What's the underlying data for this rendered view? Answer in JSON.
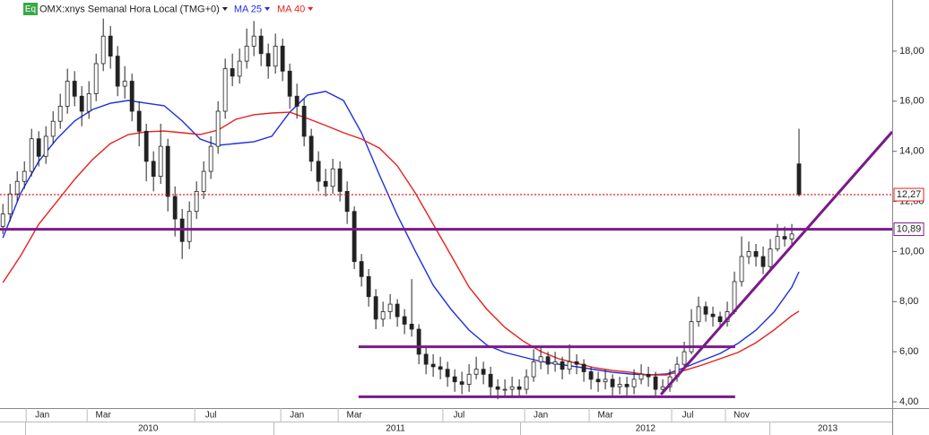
{
  "chart_data": {
    "type": "candlestick",
    "badge": "Eq",
    "title": "OMX:xnys Semanal Hora Local (TMG+0)",
    "candles": {
      "open": [
        11.0,
        11.5,
        12.3,
        12.8,
        13.2,
        14.5,
        13.8,
        14.6,
        15.2,
        15.8,
        16.8,
        16.2,
        15.6,
        16.3,
        17.5,
        18.6,
        17.8,
        16.6,
        16.8,
        15.6,
        14.8,
        13.6,
        13.0,
        14.2,
        12.2,
        11.3,
        10.4,
        11.6,
        12.4,
        13.2,
        14.2,
        15.6,
        17.3,
        17.0,
        17.6,
        18.2,
        18.6,
        17.9,
        17.4,
        18.2,
        17.2,
        16.2,
        15.8,
        14.6,
        13.6,
        12.8,
        12.6,
        13.3,
        12.4,
        11.6,
        9.6,
        9.0,
        8.2,
        7.3,
        7.6,
        7.9,
        7.4,
        7.1,
        6.9,
        5.9,
        5.5,
        5.4,
        5.3,
        5.0,
        4.8,
        4.7,
        5.1,
        5.3,
        5.1,
        4.6,
        4.5,
        4.5,
        4.6,
        4.5,
        5.0,
        5.6,
        5.8,
        5.5,
        5.6,
        5.3,
        5.6,
        5.5,
        5.2,
        4.9,
        4.8,
        4.9,
        4.6,
        4.7,
        4.6,
        4.9,
        5.1,
        5.0,
        4.5,
        4.6,
        5.0,
        5.5,
        6.0,
        7.2,
        7.8,
        7.5,
        7.4,
        7.2,
        7.6,
        8.8,
        9.8,
        10.0,
        9.8,
        9.4,
        10.1,
        10.6,
        10.5,
        13.5
      ],
      "high": [
        11.9,
        12.7,
        13.2,
        13.6,
        14.9,
        14.8,
        15.0,
        15.6,
        16.3,
        17.3,
        17.2,
        16.6,
        16.8,
        17.9,
        19.3,
        19.0,
        18.2,
        17.4,
        17.1,
        16.0,
        15.1,
        14.0,
        15.1,
        14.5,
        12.6,
        11.7,
        12.0,
        12.8,
        13.6,
        14.6,
        16.0,
        17.7,
        17.9,
        18.1,
        18.9,
        19.2,
        18.9,
        18.3,
        18.7,
        18.5,
        17.5,
        16.7,
        16.1,
        14.9,
        14.0,
        13.3,
        13.7,
        13.6,
        12.8,
        11.8,
        9.9,
        9.3,
        8.5,
        8.0,
        8.3,
        8.1,
        7.7,
        8.9,
        7.1,
        6.2,
        5.9,
        5.8,
        5.6,
        5.3,
        5.2,
        5.5,
        5.8,
        5.6,
        5.4,
        4.9,
        4.9,
        5.0,
        4.9,
        5.3,
        6.1,
        6.2,
        6.0,
        6.0,
        5.8,
        6.3,
        5.9,
        5.7,
        5.4,
        5.2,
        5.3,
        5.1,
        5.0,
        5.0,
        5.3,
        5.5,
        5.4,
        5.2,
        4.9,
        5.3,
        5.8,
        6.4,
        7.7,
        8.2,
        8.0,
        7.8,
        7.6,
        8.0,
        9.2,
        10.6,
        10.4,
        10.3,
        10.2,
        10.5,
        11.1,
        11.0,
        11.1,
        14.9
      ],
      "low": [
        10.7,
        11.2,
        12.0,
        12.5,
        13.0,
        13.4,
        13.5,
        14.3,
        14.9,
        15.5,
        15.8,
        15.0,
        15.3,
        16.0,
        17.2,
        17.3,
        16.2,
        16.1,
        15.2,
        14.2,
        12.8,
        12.4,
        12.7,
        11.6,
        10.6,
        9.7,
        10.1,
        11.3,
        12.1,
        12.9,
        13.9,
        15.3,
        16.6,
        16.7,
        17.3,
        17.8,
        17.4,
        16.9,
        17.1,
        16.8,
        15.7,
        15.3,
        14.2,
        13.2,
        12.4,
        12.2,
        12.3,
        12.0,
        11.1,
        9.3,
        8.6,
        7.8,
        6.9,
        7.0,
        7.3,
        7.0,
        6.7,
        6.6,
        5.5,
        5.1,
        5.0,
        4.9,
        4.6,
        4.4,
        4.3,
        4.4,
        4.9,
        4.7,
        4.2,
        4.1,
        4.2,
        4.2,
        4.2,
        4.3,
        4.8,
        5.3,
        5.1,
        5.2,
        4.9,
        5.1,
        5.1,
        4.8,
        4.5,
        4.4,
        4.5,
        4.2,
        4.3,
        4.2,
        4.3,
        4.7,
        4.6,
        4.2,
        4.3,
        4.4,
        4.8,
        5.3,
        5.9,
        7.0,
        7.2,
        7.0,
        6.9,
        7.0,
        7.5,
        8.6,
        9.5,
        9.4,
        9.1,
        9.2,
        10.0,
        10.2,
        10.3,
        12.2
      ],
      "close": [
        11.5,
        12.3,
        12.8,
        13.2,
        14.5,
        13.8,
        14.6,
        15.2,
        15.8,
        16.8,
        16.2,
        15.6,
        16.3,
        17.5,
        18.6,
        17.8,
        16.6,
        16.8,
        15.6,
        14.8,
        13.6,
        13.0,
        14.2,
        12.2,
        11.3,
        10.4,
        11.6,
        12.4,
        13.2,
        14.2,
        15.6,
        17.3,
        17.0,
        17.6,
        18.2,
        18.6,
        17.9,
        17.4,
        18.2,
        17.2,
        16.2,
        15.8,
        14.6,
        13.6,
        12.8,
        12.6,
        13.3,
        12.4,
        11.6,
        9.6,
        9.0,
        8.2,
        7.3,
        7.6,
        7.9,
        7.4,
        7.1,
        6.9,
        5.9,
        5.5,
        5.4,
        5.3,
        5.0,
        4.8,
        4.7,
        5.1,
        5.3,
        5.1,
        4.6,
        4.5,
        4.5,
        4.6,
        4.5,
        5.0,
        5.6,
        5.8,
        5.5,
        5.6,
        5.3,
        5.6,
        5.5,
        5.2,
        4.9,
        4.8,
        4.9,
        4.6,
        4.7,
        4.6,
        4.9,
        5.1,
        5.0,
        4.5,
        4.6,
        5.0,
        5.5,
        6.0,
        7.2,
        7.8,
        7.5,
        7.4,
        7.2,
        7.6,
        8.8,
        9.8,
        10.0,
        9.8,
        9.4,
        10.1,
        10.6,
        10.5,
        10.7,
        12.27
      ]
    },
    "series": [
      {
        "name": "MA 25",
        "color": "#1f2ee0",
        "x": [
          0,
          2.5,
          5,
          7.5,
          10,
          12.5,
          15,
          17.5,
          20,
          22.5,
          25,
          27.5,
          30,
          32.5,
          35,
          37.5,
          40,
          42.5,
          45,
          47.5,
          50,
          52.5,
          55,
          57.5,
          60,
          62.5,
          65,
          67.5,
          70,
          72.5,
          75,
          77.5,
          80,
          82.5,
          85,
          87.5,
          90,
          92.5,
          95,
          97.5,
          100,
          102.5,
          105,
          107.5,
          110,
          111
        ],
        "values": [
          10.55,
          12.34,
          13.6,
          14.49,
          15.21,
          15.67,
          15.92,
          16.03,
          15.92,
          15.82,
          15.21,
          14.49,
          14.24,
          14.31,
          14.38,
          14.6,
          15.56,
          16.25,
          16.39,
          16.03,
          14.74,
          13.06,
          11.45,
          10.02,
          8.65,
          7.69,
          6.86,
          6.26,
          5.97,
          5.79,
          5.61,
          5.5,
          5.4,
          5.29,
          5.18,
          5.11,
          5.07,
          5.11,
          5.36,
          5.65,
          5.93,
          6.33,
          6.86,
          7.58,
          8.58,
          9.19
        ]
      },
      {
        "name": "MA 40",
        "color": "#e8201c",
        "x": [
          0,
          2.5,
          5,
          7.5,
          10,
          12.5,
          15,
          17.5,
          20,
          22.5,
          25,
          27.5,
          30,
          32.5,
          35,
          37.5,
          40,
          42.5,
          45,
          47.5,
          50,
          52.5,
          55,
          57.5,
          60,
          62.5,
          65,
          67.5,
          70,
          72.5,
          75,
          77.5,
          80,
          82.5,
          85,
          87.5,
          90,
          92.5,
          95,
          97.5,
          100,
          102.5,
          105,
          107.5,
          110,
          111
        ],
        "values": [
          8.76,
          9.84,
          11.09,
          11.98,
          12.88,
          13.67,
          14.31,
          14.67,
          14.78,
          14.81,
          14.74,
          14.67,
          14.85,
          15.28,
          15.46,
          15.53,
          15.56,
          15.31,
          15.03,
          14.74,
          14.49,
          14.13,
          13.42,
          12.34,
          11.09,
          9.84,
          8.58,
          7.69,
          6.97,
          6.43,
          6.01,
          5.72,
          5.54,
          5.36,
          5.25,
          5.18,
          5.07,
          5.07,
          5.25,
          5.47,
          5.72,
          5.97,
          6.36,
          6.86,
          7.44,
          7.62
        ]
      }
    ],
    "levels": [
      {
        "value": 12.27,
        "label": "12,27",
        "color": "#e8201c",
        "style": "dotted"
      },
      {
        "value": 10.89,
        "label": "10,89",
        "color": "#7a1a8a",
        "style": "solid"
      }
    ],
    "lines": [
      {
        "color": "#7a1a8a",
        "x": [
          49.6,
          102.1
        ],
        "y": [
          6.2,
          6.2
        ]
      },
      {
        "color": "#7a1a8a",
        "x": [
          49.6,
          102.1
        ],
        "y": [
          4.2,
          4.2
        ]
      },
      {
        "color": "#7a1a8a",
        "x": [
          91.75,
          124
        ],
        "y": [
          4.29,
          14.78
        ]
      }
    ],
    "xlim": [
      -0.4,
      124
    ],
    "xticks": [
      {
        "value": 5.5,
        "label": "Jan"
      },
      {
        "value": 14,
        "label": "Mar"
      },
      {
        "value": 29,
        "label": "Jul"
      },
      {
        "value": 41,
        "label": "Jan"
      },
      {
        "value": 49,
        "label": "Mar"
      },
      {
        "value": 63.6,
        "label": "Jul"
      },
      {
        "value": 75,
        "label": "Jan"
      },
      {
        "value": 84,
        "label": "Mar"
      },
      {
        "value": 95.5,
        "label": "Jul"
      },
      {
        "value": 103,
        "label": "Nov"
      }
    ],
    "year_ticks": [
      {
        "value": 20.25,
        "label": "2010"
      },
      {
        "value": 54.75,
        "label": "2011"
      },
      {
        "value": 89.6,
        "label": "2012"
      },
      {
        "value": 115,
        "label": "2013"
      }
    ],
    "ylim": [
      3.75,
      20.04
    ],
    "yticks": [
      {
        "value": 4,
        "label": "4,00"
      },
      {
        "value": 6,
        "label": "6,00"
      },
      {
        "value": 8,
        "label": "8,00"
      },
      {
        "value": 10,
        "label": "10,00"
      },
      {
        "value": 12,
        "label": "12,00"
      },
      {
        "value": 14,
        "label": "14,00"
      },
      {
        "value": 16,
        "label": "16,00"
      },
      {
        "value": 18,
        "label": "18,00"
      }
    ]
  }
}
